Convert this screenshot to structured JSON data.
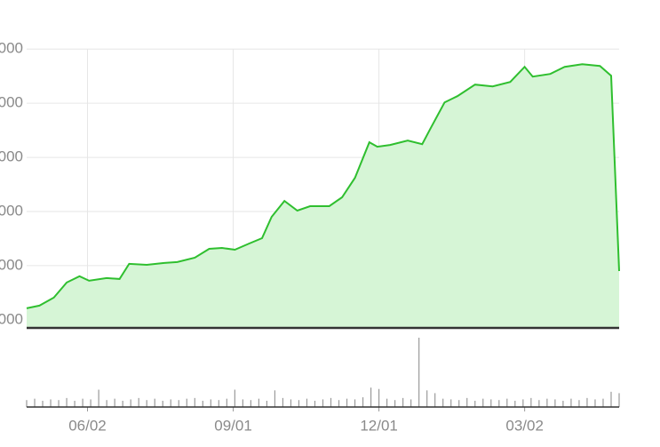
{
  "chart_data": {
    "type": "area",
    "color": "#2fbf2f",
    "fill": "#d6f5d6",
    "x": [
      0,
      8,
      17,
      25,
      33,
      39,
      50,
      58,
      64,
      75,
      86,
      94,
      105,
      114,
      122,
      130,
      139,
      147,
      153,
      161,
      169,
      177,
      189,
      197,
      205,
      214,
      219,
      227,
      238,
      247,
      252,
      261,
      269,
      280,
      291,
      302,
      311,
      316,
      327,
      336,
      347,
      358,
      365,
      370
    ],
    "values": [
      1213,
      1262,
      1410,
      1688,
      1803,
      1721,
      1770,
      1754,
      2033,
      2016,
      2049,
      2066,
      2147,
      2311,
      2328,
      2295,
      2410,
      2508,
      2901,
      3196,
      3016,
      3098,
      3098,
      3262,
      3622,
      4278,
      4196,
      4229,
      4311,
      4245,
      4524,
      5016,
      5131,
      5344,
      5311,
      5393,
      5672,
      5491,
      5541,
      5672,
      5721,
      5688,
      5508,
      1901
    ],
    "xlim": [
      0,
      370
    ],
    "ylim": [
      850,
      6250
    ],
    "xticks": [
      {
        "value": 38,
        "label": "06/02"
      },
      {
        "value": 129,
        "label": "09/01"
      },
      {
        "value": 220,
        "label": "12/01"
      },
      {
        "value": 311,
        "label": "03/02"
      }
    ],
    "yticks": [
      {
        "value": 1000,
        "label": "000"
      },
      {
        "value": 2000,
        "label": "000"
      },
      {
        "value": 3000,
        "label": "000"
      },
      {
        "value": 4000,
        "label": "000"
      },
      {
        "value": 5000,
        "label": "000"
      },
      {
        "value": 6000,
        "label": "000"
      }
    ],
    "grid": true,
    "volume": {
      "type": "bar",
      "color": "#9a9a9a",
      "step": 5,
      "ylim": [
        0,
        100
      ],
      "values": [
        10,
        12,
        9,
        11,
        10,
        13,
        9,
        12,
        11,
        25,
        10,
        12,
        9,
        11,
        13,
        10,
        12,
        9,
        11,
        10,
        12,
        13,
        9,
        11,
        10,
        12,
        25,
        11,
        10,
        12,
        9,
        24,
        13,
        11,
        10,
        12,
        9,
        11,
        13,
        10,
        12,
        11,
        14,
        28,
        26,
        12,
        10,
        13,
        11,
        100,
        24,
        20,
        12,
        11,
        10,
        13,
        9,
        12,
        11,
        10,
        12,
        9,
        11,
        13,
        10,
        12,
        11,
        9,
        12,
        10,
        13,
        11,
        12,
        22,
        20
      ]
    }
  }
}
